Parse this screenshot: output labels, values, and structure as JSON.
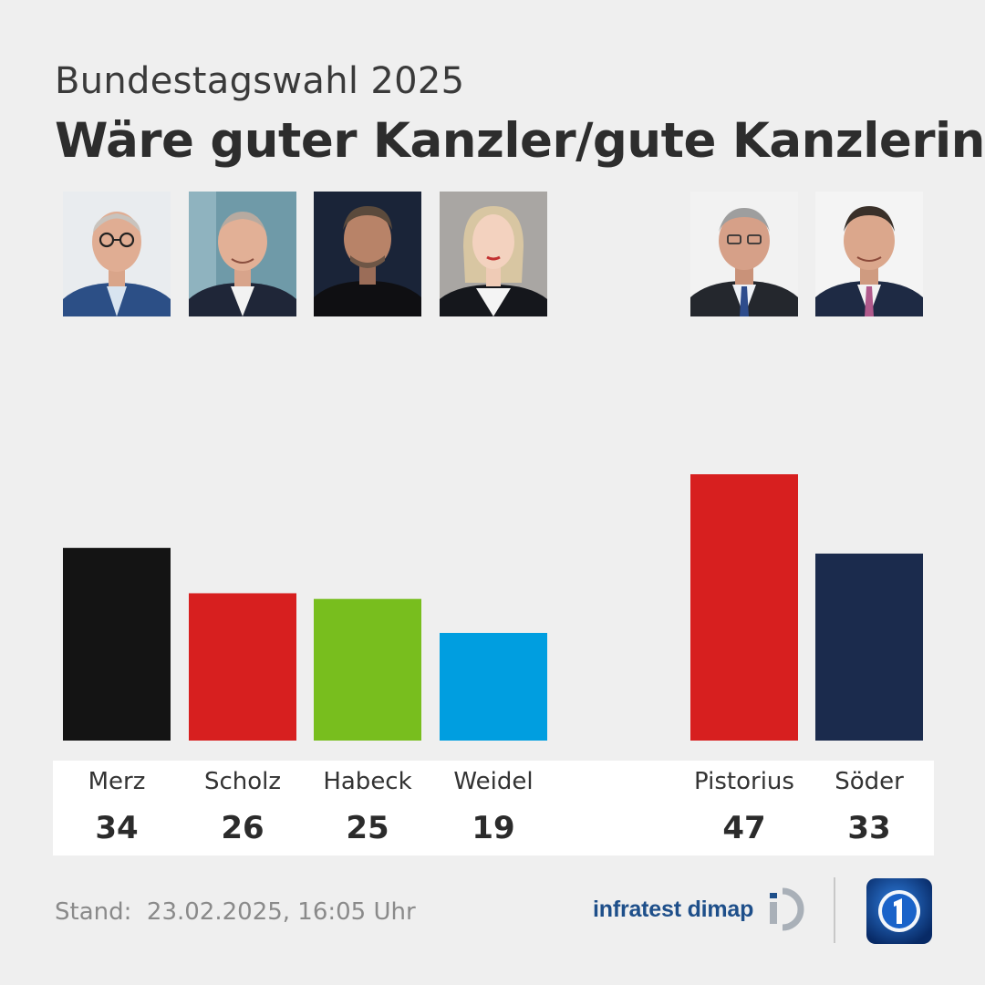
{
  "header": {
    "subtitle": "Bundestagswahl 2025",
    "title": "Wäre guter Kanzler/gute Kanzlerin"
  },
  "chart_data": {
    "type": "bar",
    "categories": [
      "Merz",
      "Scholz",
      "Habeck",
      "Weidel",
      "Pistorius",
      "Söder"
    ],
    "values": [
      34,
      26,
      25,
      19,
      47,
      33
    ],
    "colors": [
      "#141414",
      "#d71f1f",
      "#78be1e",
      "#009ee0",
      "#d71f1f",
      "#1b2b4d"
    ],
    "value_labels": [
      "34",
      "26",
      "25",
      "19",
      "47",
      "33"
    ],
    "groups": [
      [
        "Merz",
        "Scholz",
        "Habeck",
        "Weidel"
      ],
      [
        "Pistorius",
        "Söder"
      ]
    ],
    "ylim": [
      0,
      47
    ],
    "grid": false,
    "legend": "none"
  },
  "footer": {
    "stand_label": "Stand:",
    "stand_value": "23.02.2025, 16:05 Uhr",
    "source": "infratest dimap"
  }
}
